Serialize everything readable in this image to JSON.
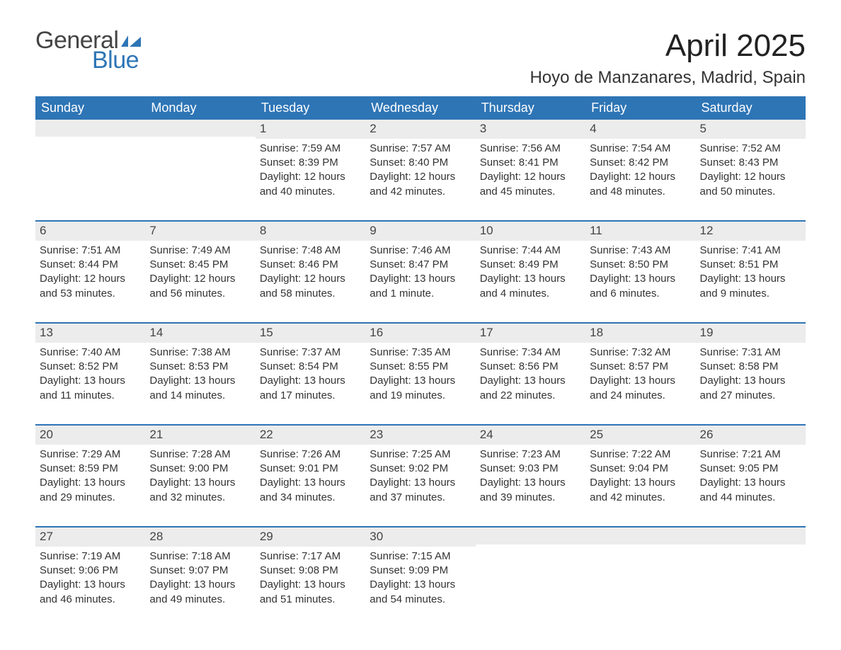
{
  "brand": {
    "text1": "General",
    "text2": "Blue",
    "flag_color": "#2e75b6"
  },
  "title": "April 2025",
  "location": "Hoyo de Manzanares, Madrid, Spain",
  "colors": {
    "header_bg": "#2e75b6",
    "week_border": "#2e75b6",
    "daynum_bg": "#ececec",
    "text": "#333333",
    "background": "#ffffff"
  },
  "fonts": {
    "title_size": 44,
    "location_size": 24,
    "weekday_size": 18,
    "body_size": 15
  },
  "weekdays": [
    "Sunday",
    "Monday",
    "Tuesday",
    "Wednesday",
    "Thursday",
    "Friday",
    "Saturday"
  ],
  "weeks": [
    [
      {
        "num": "",
        "sunrise": "",
        "sunset": "",
        "daylight": ""
      },
      {
        "num": "",
        "sunrise": "",
        "sunset": "",
        "daylight": ""
      },
      {
        "num": "1",
        "sunrise": "Sunrise: 7:59 AM",
        "sunset": "Sunset: 8:39 PM",
        "daylight": "Daylight: 12 hours and 40 minutes."
      },
      {
        "num": "2",
        "sunrise": "Sunrise: 7:57 AM",
        "sunset": "Sunset: 8:40 PM",
        "daylight": "Daylight: 12 hours and 42 minutes."
      },
      {
        "num": "3",
        "sunrise": "Sunrise: 7:56 AM",
        "sunset": "Sunset: 8:41 PM",
        "daylight": "Daylight: 12 hours and 45 minutes."
      },
      {
        "num": "4",
        "sunrise": "Sunrise: 7:54 AM",
        "sunset": "Sunset: 8:42 PM",
        "daylight": "Daylight: 12 hours and 48 minutes."
      },
      {
        "num": "5",
        "sunrise": "Sunrise: 7:52 AM",
        "sunset": "Sunset: 8:43 PM",
        "daylight": "Daylight: 12 hours and 50 minutes."
      }
    ],
    [
      {
        "num": "6",
        "sunrise": "Sunrise: 7:51 AM",
        "sunset": "Sunset: 8:44 PM",
        "daylight": "Daylight: 12 hours and 53 minutes."
      },
      {
        "num": "7",
        "sunrise": "Sunrise: 7:49 AM",
        "sunset": "Sunset: 8:45 PM",
        "daylight": "Daylight: 12 hours and 56 minutes."
      },
      {
        "num": "8",
        "sunrise": "Sunrise: 7:48 AM",
        "sunset": "Sunset: 8:46 PM",
        "daylight": "Daylight: 12 hours and 58 minutes."
      },
      {
        "num": "9",
        "sunrise": "Sunrise: 7:46 AM",
        "sunset": "Sunset: 8:47 PM",
        "daylight": "Daylight: 13 hours and 1 minute."
      },
      {
        "num": "10",
        "sunrise": "Sunrise: 7:44 AM",
        "sunset": "Sunset: 8:49 PM",
        "daylight": "Daylight: 13 hours and 4 minutes."
      },
      {
        "num": "11",
        "sunrise": "Sunrise: 7:43 AM",
        "sunset": "Sunset: 8:50 PM",
        "daylight": "Daylight: 13 hours and 6 minutes."
      },
      {
        "num": "12",
        "sunrise": "Sunrise: 7:41 AM",
        "sunset": "Sunset: 8:51 PM",
        "daylight": "Daylight: 13 hours and 9 minutes."
      }
    ],
    [
      {
        "num": "13",
        "sunrise": "Sunrise: 7:40 AM",
        "sunset": "Sunset: 8:52 PM",
        "daylight": "Daylight: 13 hours and 11 minutes."
      },
      {
        "num": "14",
        "sunrise": "Sunrise: 7:38 AM",
        "sunset": "Sunset: 8:53 PM",
        "daylight": "Daylight: 13 hours and 14 minutes."
      },
      {
        "num": "15",
        "sunrise": "Sunrise: 7:37 AM",
        "sunset": "Sunset: 8:54 PM",
        "daylight": "Daylight: 13 hours and 17 minutes."
      },
      {
        "num": "16",
        "sunrise": "Sunrise: 7:35 AM",
        "sunset": "Sunset: 8:55 PM",
        "daylight": "Daylight: 13 hours and 19 minutes."
      },
      {
        "num": "17",
        "sunrise": "Sunrise: 7:34 AM",
        "sunset": "Sunset: 8:56 PM",
        "daylight": "Daylight: 13 hours and 22 minutes."
      },
      {
        "num": "18",
        "sunrise": "Sunrise: 7:32 AM",
        "sunset": "Sunset: 8:57 PM",
        "daylight": "Daylight: 13 hours and 24 minutes."
      },
      {
        "num": "19",
        "sunrise": "Sunrise: 7:31 AM",
        "sunset": "Sunset: 8:58 PM",
        "daylight": "Daylight: 13 hours and 27 minutes."
      }
    ],
    [
      {
        "num": "20",
        "sunrise": "Sunrise: 7:29 AM",
        "sunset": "Sunset: 8:59 PM",
        "daylight": "Daylight: 13 hours and 29 minutes."
      },
      {
        "num": "21",
        "sunrise": "Sunrise: 7:28 AM",
        "sunset": "Sunset: 9:00 PM",
        "daylight": "Daylight: 13 hours and 32 minutes."
      },
      {
        "num": "22",
        "sunrise": "Sunrise: 7:26 AM",
        "sunset": "Sunset: 9:01 PM",
        "daylight": "Daylight: 13 hours and 34 minutes."
      },
      {
        "num": "23",
        "sunrise": "Sunrise: 7:25 AM",
        "sunset": "Sunset: 9:02 PM",
        "daylight": "Daylight: 13 hours and 37 minutes."
      },
      {
        "num": "24",
        "sunrise": "Sunrise: 7:23 AM",
        "sunset": "Sunset: 9:03 PM",
        "daylight": "Daylight: 13 hours and 39 minutes."
      },
      {
        "num": "25",
        "sunrise": "Sunrise: 7:22 AM",
        "sunset": "Sunset: 9:04 PM",
        "daylight": "Daylight: 13 hours and 42 minutes."
      },
      {
        "num": "26",
        "sunrise": "Sunrise: 7:21 AM",
        "sunset": "Sunset: 9:05 PM",
        "daylight": "Daylight: 13 hours and 44 minutes."
      }
    ],
    [
      {
        "num": "27",
        "sunrise": "Sunrise: 7:19 AM",
        "sunset": "Sunset: 9:06 PM",
        "daylight": "Daylight: 13 hours and 46 minutes."
      },
      {
        "num": "28",
        "sunrise": "Sunrise: 7:18 AM",
        "sunset": "Sunset: 9:07 PM",
        "daylight": "Daylight: 13 hours and 49 minutes."
      },
      {
        "num": "29",
        "sunrise": "Sunrise: 7:17 AM",
        "sunset": "Sunset: 9:08 PM",
        "daylight": "Daylight: 13 hours and 51 minutes."
      },
      {
        "num": "30",
        "sunrise": "Sunrise: 7:15 AM",
        "sunset": "Sunset: 9:09 PM",
        "daylight": "Daylight: 13 hours and 54 minutes."
      },
      {
        "num": "",
        "sunrise": "",
        "sunset": "",
        "daylight": ""
      },
      {
        "num": "",
        "sunrise": "",
        "sunset": "",
        "daylight": ""
      },
      {
        "num": "",
        "sunrise": "",
        "sunset": "",
        "daylight": ""
      }
    ]
  ]
}
